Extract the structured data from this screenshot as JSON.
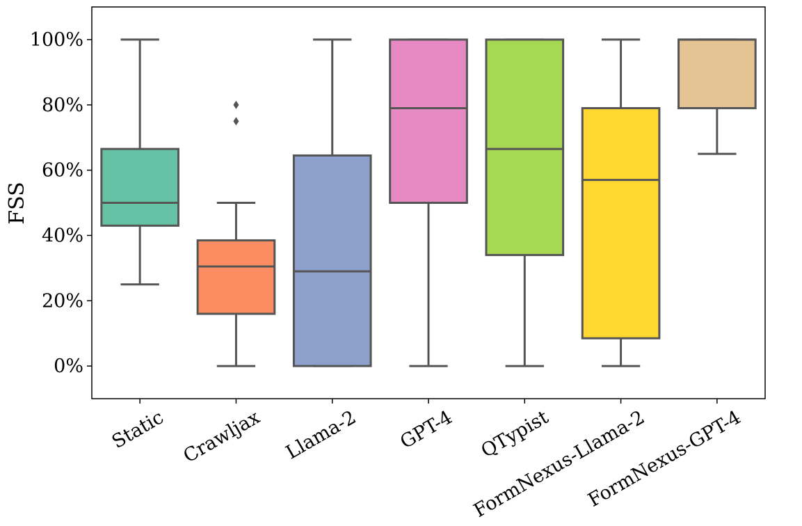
{
  "chart_data": {
    "type": "box",
    "title": "",
    "xlabel": "",
    "ylabel": "FSS",
    "ylim": [
      -10,
      110
    ],
    "yticks": [
      0,
      20,
      40,
      60,
      80,
      100
    ],
    "ytick_labels": [
      "0%",
      "20%",
      "40%",
      "60%",
      "80%",
      "100%"
    ],
    "categories": [
      "Static",
      "Crawljax",
      "Llama-2",
      "GPT-4",
      "QTypist",
      "FormNexus-Llama-2",
      "FormNexus-GPT-4"
    ],
    "boxes": [
      {
        "name": "Static",
        "whisker_low": 25,
        "q1": 43,
        "median": 50,
        "q3": 66.5,
        "whisker_high": 100,
        "fliers": [],
        "color": "#66c2a5"
      },
      {
        "name": "Crawljax",
        "whisker_low": 0,
        "q1": 16,
        "median": 30.5,
        "q3": 38.5,
        "whisker_high": 50,
        "fliers": [
          75,
          80
        ],
        "color": "#fc8d62"
      },
      {
        "name": "Llama-2",
        "whisker_low": 0,
        "q1": 0,
        "median": 29,
        "q3": 64.5,
        "whisker_high": 100,
        "fliers": [],
        "color": "#8da0cb"
      },
      {
        "name": "GPT-4",
        "whisker_low": 0,
        "q1": 50,
        "median": 79,
        "q3": 100,
        "whisker_high": 100,
        "fliers": [],
        "color": "#e78ac3"
      },
      {
        "name": "QTypist",
        "whisker_low": 0,
        "q1": 34,
        "median": 66.5,
        "q3": 100,
        "whisker_high": 100,
        "fliers": [],
        "color": "#a6d854"
      },
      {
        "name": "FormNexus-Llama-2",
        "whisker_low": 0,
        "q1": 8.5,
        "median": 57,
        "q3": 79,
        "whisker_high": 100,
        "fliers": [],
        "color": "#ffd92f"
      },
      {
        "name": "FormNexus-GPT-4",
        "whisker_low": 65,
        "q1": 79,
        "median": 100,
        "q3": 100,
        "whisker_high": 100,
        "fliers": [],
        "color": "#e5c494"
      }
    ],
    "grid": false,
    "legend": "none"
  }
}
